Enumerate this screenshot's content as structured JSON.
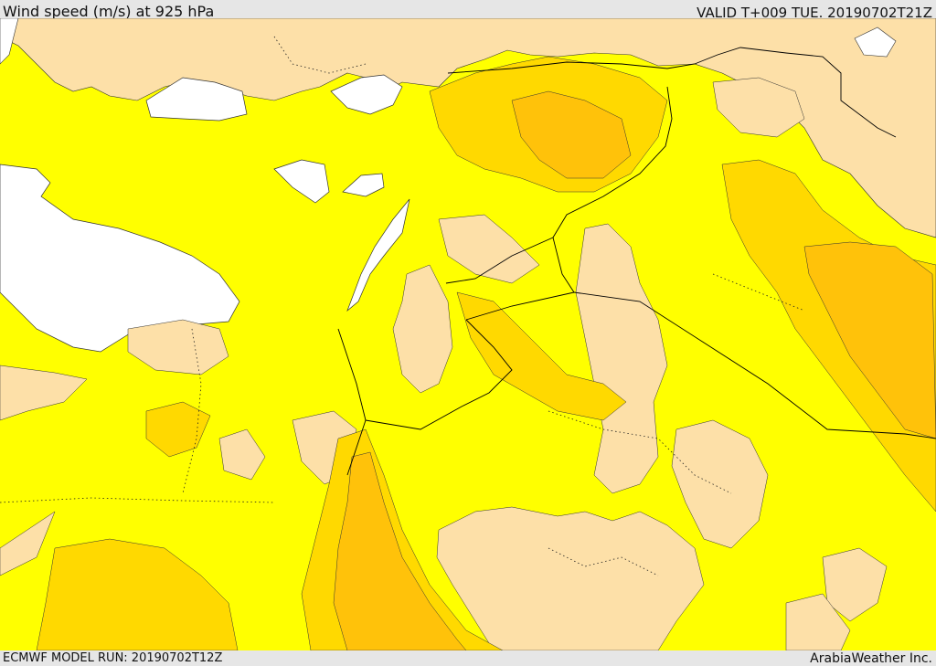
{
  "header": {
    "title": "Wind speed (m/s) at 925 hPa",
    "valid": "VALID T+009 TUE. 20190702T21Z"
  },
  "footer": {
    "run": "ECMWF MODEL RUN: 20190702T12Z",
    "credit": "ArabiaWeather Inc."
  },
  "colors": {
    "background_fill": "#ffff00",
    "weak_wind": "#fde0a8",
    "sea_calm": "#ffffff",
    "band_light": "#ffd900",
    "band_medium": "#ffc20a",
    "borders": "#000000"
  }
}
